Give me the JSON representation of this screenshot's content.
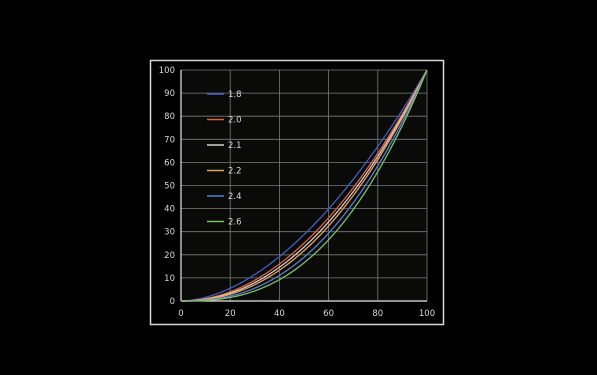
{
  "chart_data": {
    "type": "line",
    "title": "",
    "xlabel": "",
    "ylabel": "",
    "xlim": [
      0,
      100
    ],
    "ylim": [
      0,
      100
    ],
    "x_ticks": [
      "0",
      "20",
      "40",
      "60",
      "80",
      "100"
    ],
    "y_ticks": [
      "0",
      "10",
      "20",
      "30",
      "40",
      "50",
      "60",
      "70",
      "80",
      "90",
      "100"
    ],
    "grid": true,
    "legend_position": "top-left",
    "x": [
      0,
      10,
      20,
      30,
      40,
      50,
      60,
      70,
      80,
      90,
      100
    ],
    "series": [
      {
        "name": "1.8",
        "color": "#3f5fbf",
        "gamma": 1.8,
        "values": [
          0,
          1.6,
          5.5,
          11.5,
          19.2,
          28.7,
          39.9,
          52.6,
          66.9,
          82.7,
          100
        ]
      },
      {
        "name": "2.0",
        "color": "#e0603a",
        "gamma": 2.0,
        "values": [
          0,
          1.0,
          4.0,
          9.0,
          16.0,
          25.0,
          36.0,
          49.0,
          64.0,
          81.0,
          100
        ]
      },
      {
        "name": "2.1",
        "color": "#cfcfcf",
        "gamma": 2.1,
        "values": [
          0,
          0.8,
          3.4,
          8.0,
          14.6,
          23.3,
          34.2,
          47.3,
          62.6,
          80.2,
          100
        ]
      },
      {
        "name": "2.2",
        "color": "#e8a060",
        "gamma": 2.2,
        "values": [
          0,
          0.6,
          2.9,
          7.1,
          13.3,
          21.8,
          32.5,
          45.6,
          61.2,
          79.3,
          100
        ]
      },
      {
        "name": "2.4",
        "color": "#4f7fcf",
        "gamma": 2.4,
        "values": [
          0,
          0.4,
          2.1,
          5.6,
          11.1,
          18.9,
          29.3,
          42.5,
          58.5,
          77.6,
          100
        ]
      },
      {
        "name": "2.6",
        "color": "#7fbf6a",
        "gamma": 2.6,
        "values": [
          0,
          0.3,
          1.5,
          4.4,
          9.2,
          16.5,
          26.5,
          39.5,
          56.0,
          76.0,
          100
        ]
      }
    ]
  },
  "colors": {
    "background": "#000000",
    "plot_background": "#0a0a08",
    "frame": "#d8d8d8",
    "grid": "#7a7a7a",
    "axis": "#e6e6e6",
    "text": "#d8d8d8"
  }
}
